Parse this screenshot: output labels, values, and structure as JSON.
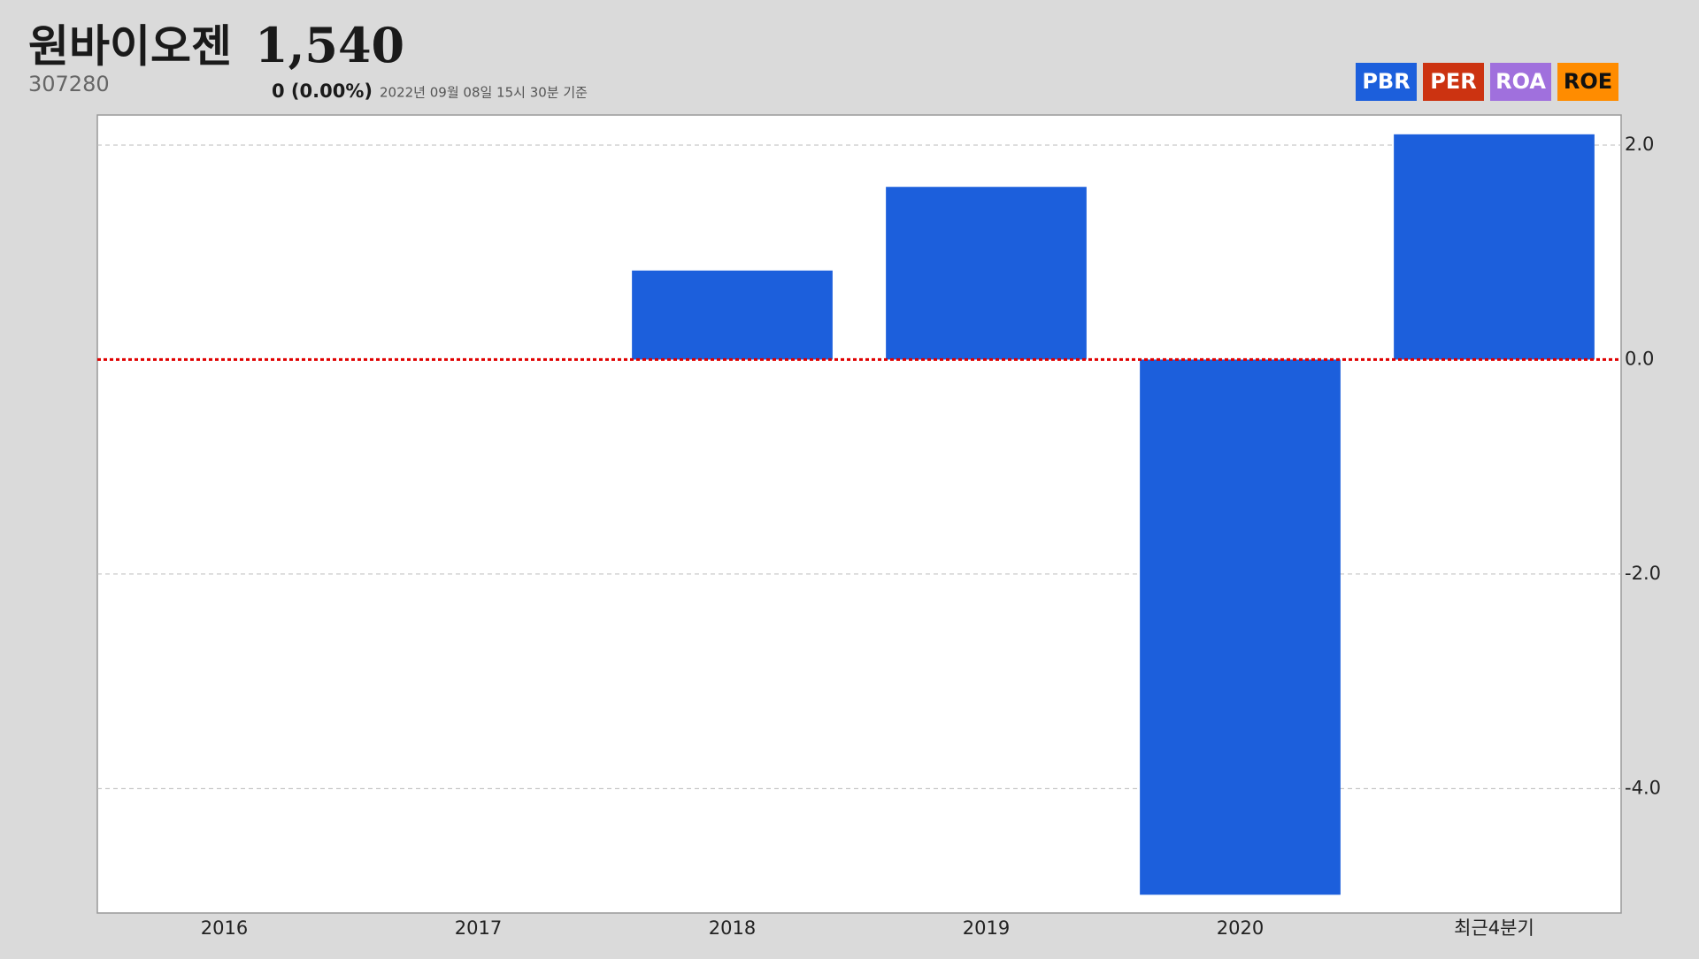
{
  "header": {
    "title": "원바이오젠",
    "price": "1,540",
    "code": "307280",
    "change": "0 (0.00%)",
    "timestamp": "2022년 09월 08일 15시 30분 기준"
  },
  "tabs": [
    {
      "label": "PER",
      "color": "#cc3311"
    },
    {
      "label": "ROA",
      "color": "#a070dd"
    },
    {
      "label": "ROE",
      "color": "#ff8c00"
    }
  ],
  "chart_data": {
    "type": "bar",
    "categories": [
      "2016",
      "2017",
      "2018",
      "2019",
      "2020",
      "최근4분기"
    ],
    "series": [
      {
        "name": "PBR",
        "color": "#1c5fdc",
        "values": [
          null,
          null,
          0.83,
          1.61,
          -4.99,
          2.1
        ]
      }
    ],
    "ylim": [
      -5.16,
      2.28
    ],
    "yticks": [
      {
        "value": -4,
        "label": "-4.0"
      },
      {
        "value": -2,
        "label": "-2.0"
      },
      {
        "value": 0,
        "label": "0.0"
      },
      {
        "value": 2,
        "label": "2.0"
      }
    ],
    "grid": true,
    "zero_line_color": "#e00000"
  }
}
